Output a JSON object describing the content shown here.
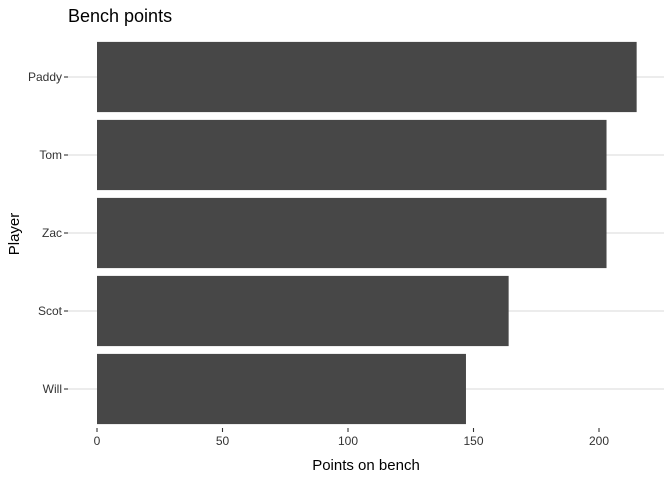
{
  "chart_data": {
    "type": "bar",
    "orientation": "horizontal",
    "title": "Bench points",
    "xlabel": "Points on bench",
    "ylabel": "Player",
    "categories": [
      "Paddy",
      "Tom",
      "Zac",
      "Scot",
      "Will"
    ],
    "values": [
      215,
      203,
      203,
      164,
      147
    ],
    "xlim": [
      0,
      226
    ],
    "xticks": [
      0,
      50,
      100,
      150,
      200
    ],
    "grid": "major-y-only",
    "legend": "none",
    "colors": {
      "bar": "#474747",
      "grid": "#d9d9d9"
    }
  }
}
